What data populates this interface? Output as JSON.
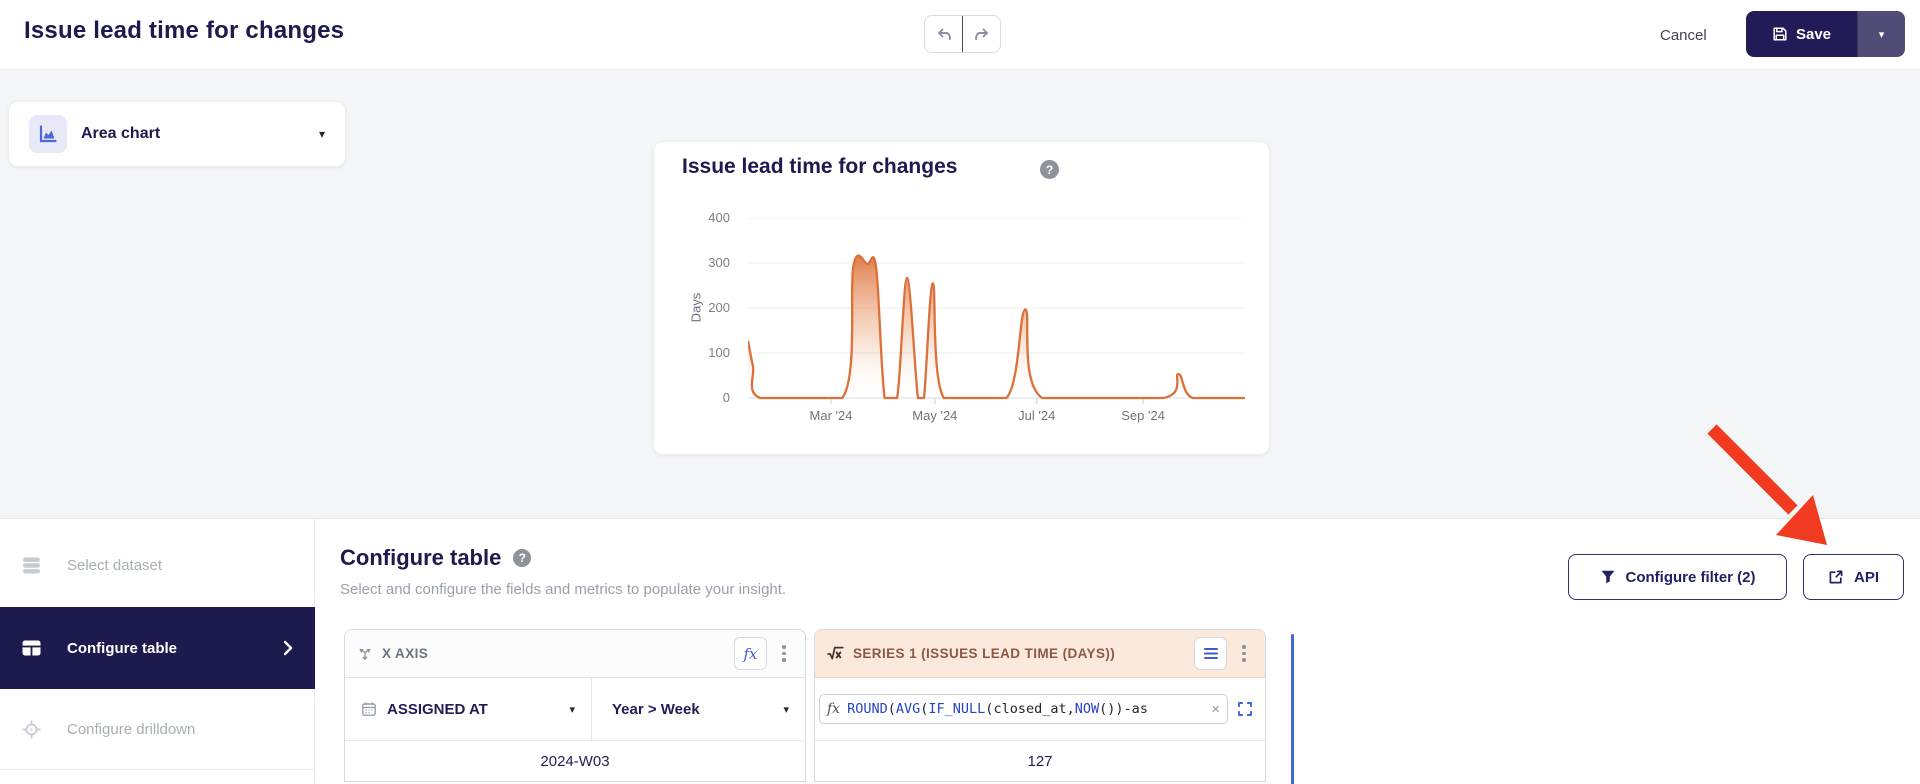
{
  "header": {
    "title": "Issue lead time for changes",
    "cancel_label": "Cancel",
    "save_label": "Save",
    "icons": [
      "undo-icon",
      "redo-icon",
      "floppy-icon",
      "caret-down-icon"
    ]
  },
  "chart_type_selector": {
    "label": "Area chart",
    "icon": "area-chart-icon"
  },
  "chart_card": {
    "title": "Issue lead time for changes",
    "help_glyph": "?"
  },
  "chart_data": {
    "type": "area",
    "title": "Issue lead time for changes",
    "xlabel": "",
    "ylabel": "Days",
    "ylim": [
      0,
      400
    ],
    "y_ticks": [
      0,
      100,
      200,
      300,
      400
    ],
    "x_ticks": [
      {
        "label": "Mar '24",
        "f": 0.167
      },
      {
        "label": "May '24",
        "f": 0.376
      },
      {
        "label": "Jul '24",
        "f": 0.581
      },
      {
        "label": "Sep '24",
        "f": 0.795
      }
    ],
    "grid": true,
    "legend": false,
    "series": [
      {
        "name": "Issues lead time (days)",
        "first_point_label": "2024-W03",
        "points": [
          [
            0,
            127
          ],
          [
            0.01,
            70
          ],
          [
            0.025,
            0
          ],
          [
            0.19,
            0
          ],
          [
            0.212,
            293
          ],
          [
            0.24,
            298
          ],
          [
            0.258,
            288
          ],
          [
            0.275,
            0
          ],
          [
            0.3,
            0
          ],
          [
            0.32,
            267
          ],
          [
            0.342,
            0
          ],
          [
            0.354,
            0
          ],
          [
            0.372,
            255
          ],
          [
            0.394,
            0
          ],
          [
            0.52,
            0
          ],
          [
            0.558,
            197
          ],
          [
            0.592,
            0
          ],
          [
            0.835,
            0
          ],
          [
            0.866,
            53
          ],
          [
            0.895,
            0
          ],
          [
            1,
            0
          ]
        ]
      }
    ]
  },
  "sidebar": {
    "items": [
      {
        "label": "Select dataset",
        "icon": "database-icon",
        "active": false
      },
      {
        "label": "Configure table",
        "icon": "table-icon",
        "active": true
      },
      {
        "label": "Configure drilldown",
        "icon": "crosshair-icon",
        "active": false
      }
    ]
  },
  "configure": {
    "heading": "Configure table",
    "help_glyph": "?",
    "description": "Select and configure the fields and metrics to populate your insight.",
    "filter_button_label": "Configure filter (2)",
    "api_button_label": "API"
  },
  "table": {
    "x_axis": {
      "header": "X AXIS",
      "fx_label": "fx",
      "field": "ASSIGNED AT",
      "granularity": "Year > Week",
      "value": "2024-W03",
      "icons": [
        "axis-move-icon",
        "calendar-icon",
        "kebab-icon"
      ]
    },
    "series1": {
      "header": "SERIES 1 (ISSUES LEAD TIME (DAYS))",
      "icon": "sqrt-x-icon",
      "formula_prefix": "fx",
      "formula_tokens": [
        {
          "text": "ROUND",
          "type": "fn"
        },
        {
          "text": "(",
          "type": "txt"
        },
        {
          "text": "AVG",
          "type": "fn"
        },
        {
          "text": "(",
          "type": "txt"
        },
        {
          "text": "IF_NULL",
          "type": "fn"
        },
        {
          "text": "(",
          "type": "txt"
        },
        {
          "text": "closed_at,",
          "type": "txt"
        },
        {
          "text": "NOW",
          "type": "fn"
        },
        {
          "text": "())-as",
          "type": "txt"
        }
      ],
      "clear_glyph": "×",
      "value": "127",
      "icons": [
        "menu-icon",
        "kebab-icon",
        "expand-icon"
      ]
    }
  },
  "annotation": {
    "shape": "red-arrow",
    "points_at": "api-button"
  },
  "colors": {
    "navy": "#211c57",
    "sidebar_active": "#1d1a4e",
    "orange_line": "#dd6f39",
    "series_header_bg": "#fbe9dd",
    "series_header_text": "#8a5a44",
    "formula_fn_blue": "#2743cc",
    "accent_blue": "#3e6ad1",
    "arrow_red": "#f13b20",
    "muted_gray": "#9aa0aa",
    "page_bg": "#f4f5f7"
  }
}
